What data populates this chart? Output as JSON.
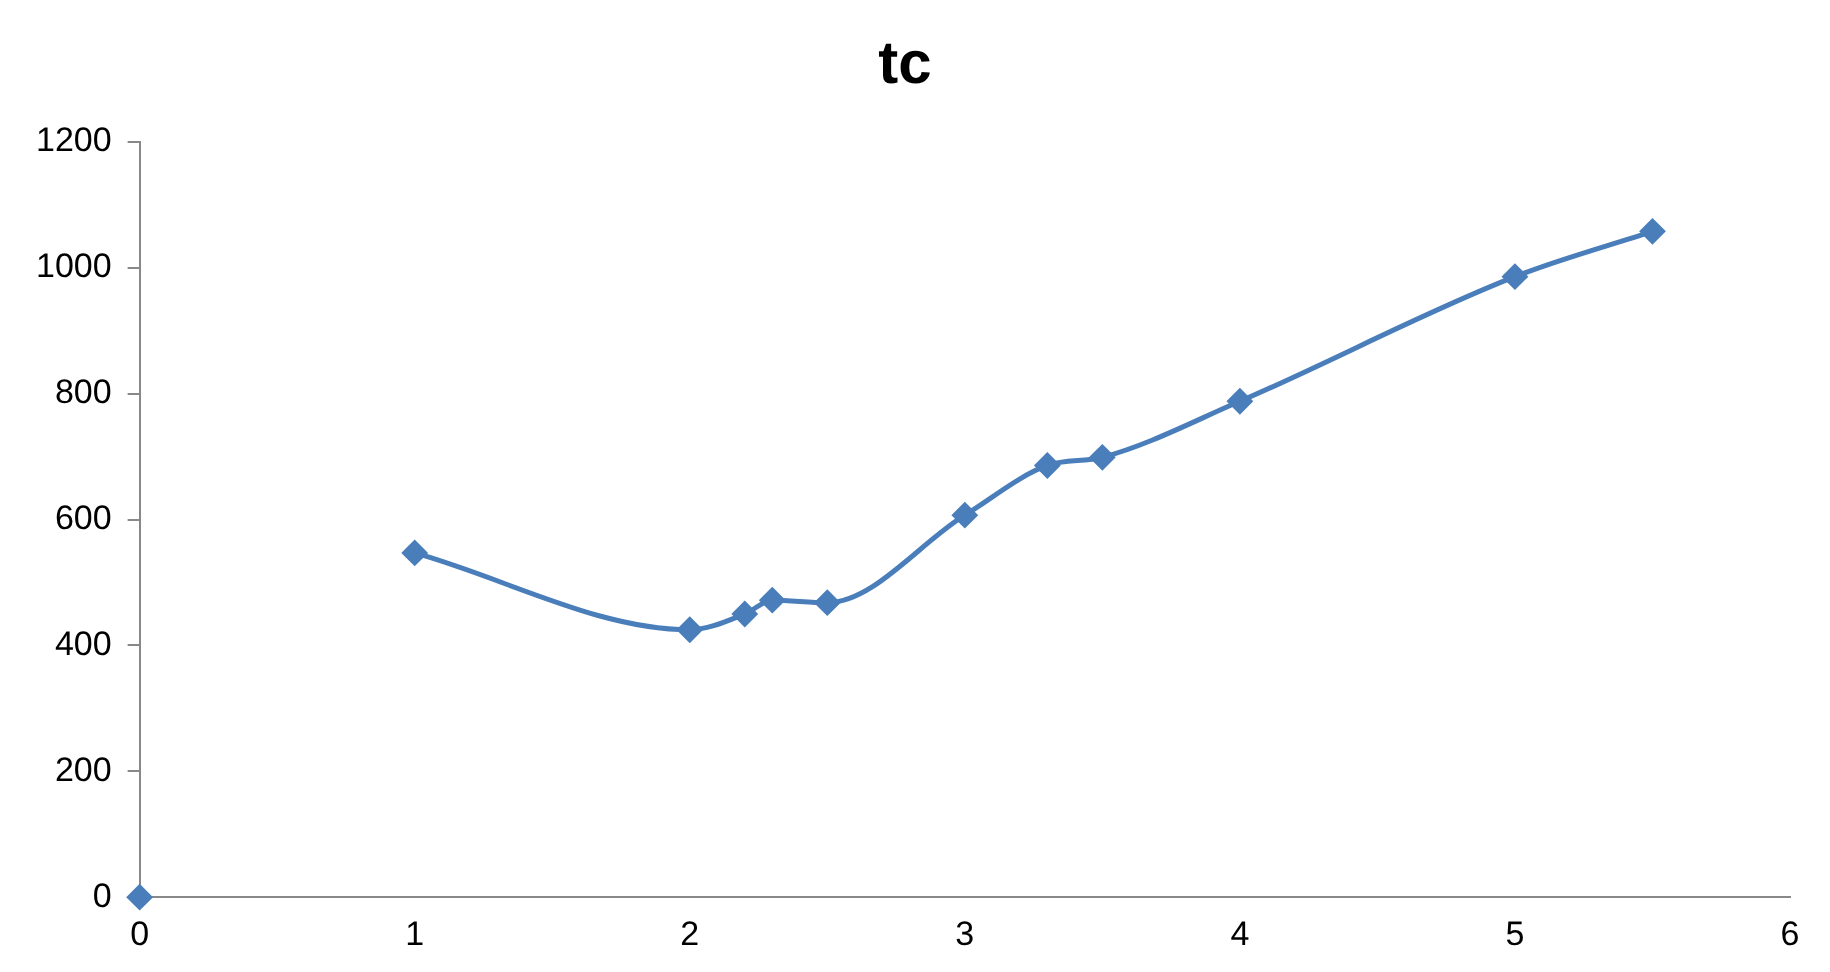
{
  "chart_data": {
    "type": "line",
    "title": "tc",
    "series": [
      {
        "type": "scatter",
        "color": "#4a7ebb",
        "x": [
          0
        ],
        "values": [
          0
        ]
      },
      {
        "type": "line",
        "color": "#4a7ebb",
        "x": [
          1,
          2,
          2.2,
          2.3,
          2.5,
          3,
          3.3,
          3.5,
          4,
          5,
          5.5
        ],
        "values": [
          547,
          425,
          450,
          472,
          468,
          607,
          686,
          699,
          788,
          986,
          1058
        ]
      }
    ],
    "xlim": [
      0,
      6
    ],
    "xticks": [
      0,
      1,
      2,
      3,
      4,
      5,
      6
    ],
    "ylim": [
      0,
      1200
    ],
    "yticks": [
      0,
      200,
      400,
      600,
      800,
      1000,
      1200
    ],
    "grid": false,
    "legend": false,
    "marker": "diamond",
    "line_style": "solid"
  }
}
